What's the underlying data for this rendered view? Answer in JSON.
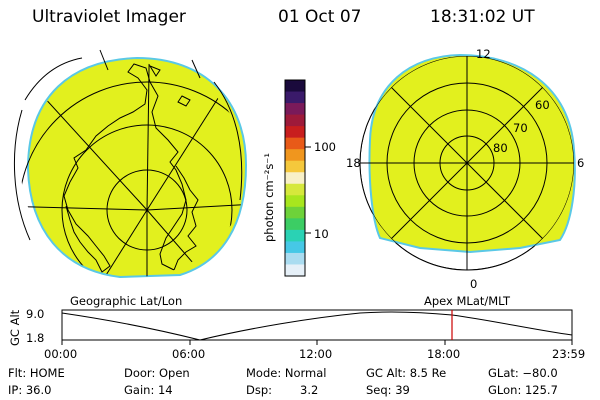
{
  "header": {
    "instrument": "Ultraviolet Imager",
    "date": "01 Oct 07",
    "time": "18:31:02 UT"
  },
  "left_panel": {
    "label": "Geographic Lat/Lon"
  },
  "right_panel": {
    "label": "Apex MLat/MLT",
    "mlt_labels": [
      "12",
      "18",
      "6",
      "0"
    ],
    "mlat_labels": [
      "60",
      "70",
      "80"
    ]
  },
  "colorbar": {
    "unit_label": "photon cm⁻²s⁻¹",
    "tick_labels": [
      "100",
      "10"
    ],
    "colors": [
      "#1a0a3c",
      "#3a1a6a",
      "#7a1a5a",
      "#9e1a3a",
      "#c81e1e",
      "#e85a18",
      "#f0961e",
      "#f5c83c",
      "#f8f0c8",
      "#d6e83c",
      "#a8e61e",
      "#6ed23a",
      "#3ccd64",
      "#2ad2b4",
      "#46c8e6",
      "#aadcf0",
      "#e6f0f8"
    ]
  },
  "altitude_plot": {
    "ylabel": "GC Alt",
    "y_ticks": [
      "9.0",
      "1.8"
    ],
    "x_ticks": [
      "00:00",
      "06:00",
      "12:00",
      "18:00",
      "23:59"
    ],
    "current_time_marker_color": "#cc0000"
  },
  "info": {
    "row1": {
      "filter": "Flt: HOME",
      "door": "Door: Open",
      "mode": "Mode: Normal",
      "gc_alt": "GC Alt: 8.5 Re",
      "glat": "GLat: −80.0"
    },
    "row2": {
      "ip": "IP: 36.0",
      "gain": "Gain: 14",
      "dsp_label": "Dsp:",
      "dsp_value": "3.2",
      "seq": "Seq: 39",
      "glon": "GLon: 125.7"
    }
  }
}
